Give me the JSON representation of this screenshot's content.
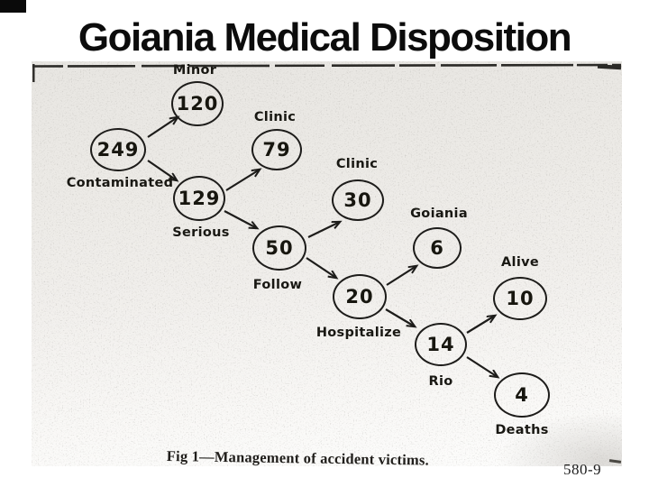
{
  "slide": {
    "title": "Goiania Medical Disposition",
    "slide_number": "580-9"
  },
  "figure": {
    "caption": "Fig 1—Management of accident victims.",
    "ink_color": "#1d1c1a",
    "nodes": [
      {
        "id": "contaminated",
        "value": "249",
        "label": "Contaminated",
        "label_side": "below"
      },
      {
        "id": "minor",
        "value": "120",
        "label": "Minor",
        "label_side": "above"
      },
      {
        "id": "serious",
        "value": "129",
        "label": "Serious",
        "label_side": "below"
      },
      {
        "id": "clinic-79",
        "value": "79",
        "label": "Clinic",
        "label_side": "above"
      },
      {
        "id": "follow",
        "value": "50",
        "label": "Follow",
        "label_side": "below"
      },
      {
        "id": "clinic-30",
        "value": "30",
        "label": "Clinic",
        "label_side": "above"
      },
      {
        "id": "hospitalize",
        "value": "20",
        "label": "Hospitalize",
        "label_side": "below"
      },
      {
        "id": "goiania",
        "value": "6",
        "label": "Goiania",
        "label_side": "above"
      },
      {
        "id": "rio",
        "value": "14",
        "label": "Rio",
        "label_side": "below"
      },
      {
        "id": "alive",
        "value": "10",
        "label": "Alive",
        "label_side": "above"
      },
      {
        "id": "deaths",
        "value": "4",
        "label": "Deaths",
        "label_side": "below"
      }
    ],
    "edges": [
      {
        "from": "249",
        "to": "120"
      },
      {
        "from": "249",
        "to": "129"
      },
      {
        "from": "129",
        "to": "79"
      },
      {
        "from": "129",
        "to": "50"
      },
      {
        "from": "50",
        "to": "30"
      },
      {
        "from": "50",
        "to": "20"
      },
      {
        "from": "20",
        "to": "6"
      },
      {
        "from": "20",
        "to": "14"
      },
      {
        "from": "14",
        "to": "10"
      },
      {
        "from": "14",
        "to": "4"
      }
    ]
  }
}
